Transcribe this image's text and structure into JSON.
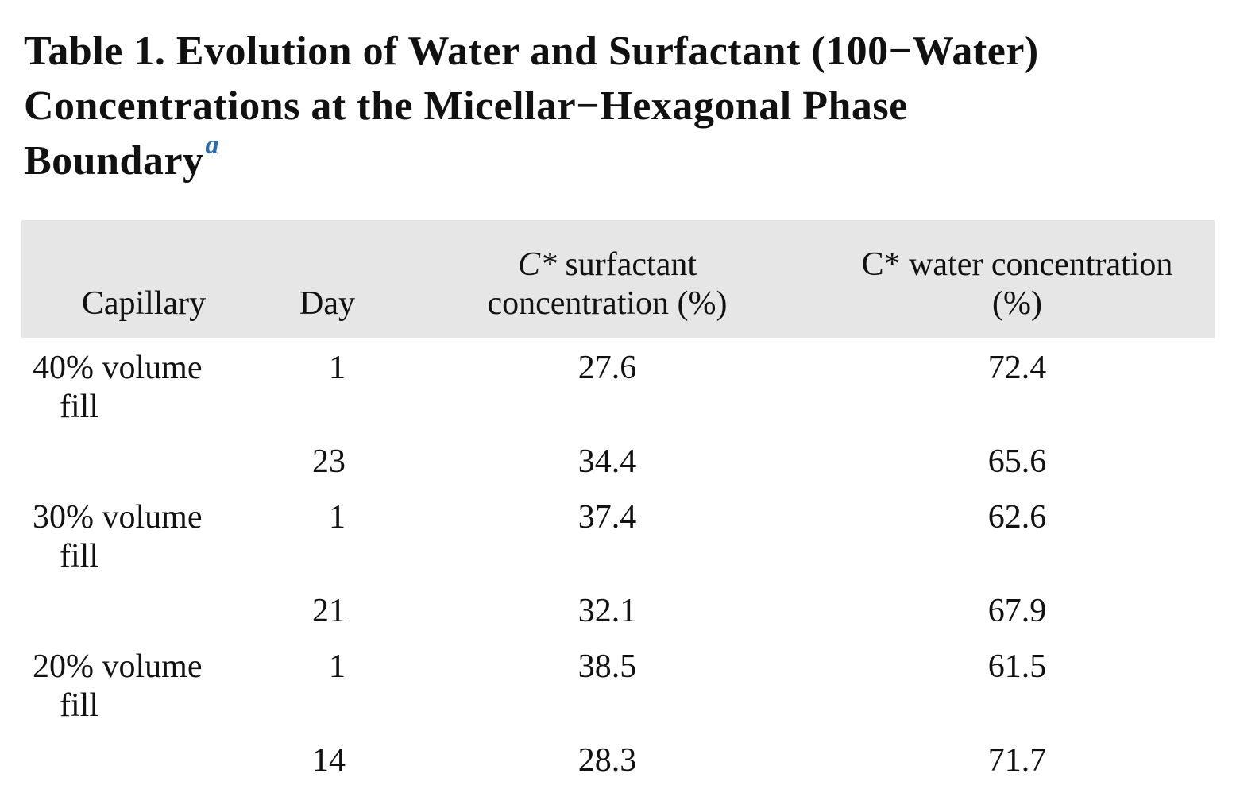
{
  "caption": {
    "line1": "Table 1. Evolution of Water and Surfactant (100−Water)",
    "line2": "Concentrations at the Micellar−Hexagonal Phase",
    "line3": "Boundary",
    "footnote_marker": "a"
  },
  "table": {
    "header": {
      "capillary": "Capillary",
      "day": "Day",
      "surfactant_c": "C*",
      "surfactant_rest": " surfactant",
      "surfactant_line2": "concentration (%)",
      "water_line1": "C* water concentration",
      "water_line2": "(%)"
    },
    "rows": [
      {
        "capillary_line1": "40% volume",
        "capillary_line2": "fill",
        "day": "1",
        "surfactant": "27.6",
        "water": "72.4"
      },
      {
        "capillary_line1": "",
        "capillary_line2": "",
        "day": "23",
        "surfactant": "34.4",
        "water": "65.6"
      },
      {
        "capillary_line1": "30% volume",
        "capillary_line2": "fill",
        "day": "1",
        "surfactant": "37.4",
        "water": "62.6"
      },
      {
        "capillary_line1": "",
        "capillary_line2": "",
        "day": "21",
        "surfactant": "32.1",
        "water": "67.9"
      },
      {
        "capillary_line1": "20% volume",
        "capillary_line2": "fill",
        "day": "1",
        "surfactant": "38.5",
        "water": "61.5"
      },
      {
        "capillary_line1": "",
        "capillary_line2": "",
        "day": "14",
        "surfactant": "28.3",
        "water": "71.7"
      }
    ]
  },
  "colors": {
    "header_background": "#e6e6e6",
    "footnote_link": "#2a6cb0",
    "text": "#111111"
  }
}
